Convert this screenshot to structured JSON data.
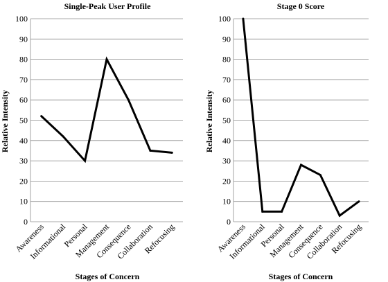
{
  "chart_data": [
    {
      "type": "line",
      "title": "Single-Peak User Profile",
      "xlabel": "Stages of Concern",
      "ylabel": "Relative Intensity",
      "categories": [
        "Awareness",
        "Informational",
        "Personal",
        "Management",
        "Consequence",
        "Collaboration",
        "Refocusing"
      ],
      "series": [
        {
          "values": [
            52,
            42,
            30,
            80,
            60,
            35,
            34
          ]
        }
      ],
      "ylim": [
        0,
        100
      ],
      "yticks": [
        "0",
        "10",
        "20",
        "30",
        "40",
        "50",
        "60",
        "70",
        "80",
        "90",
        "100"
      ],
      "grid": true,
      "legend": "none"
    },
    {
      "type": "line",
      "title": "Stage 0 Score",
      "xlabel": "Stages of Concern",
      "ylabel": "Relative Intensity",
      "categories": [
        "Awareness",
        "Informational",
        "Personal",
        "Management",
        "Consequence",
        "Collaboration",
        "Refocusing"
      ],
      "series": [
        {
          "values": [
            100,
            5,
            5,
            28,
            23,
            3,
            10
          ]
        }
      ],
      "ylim": [
        0,
        100
      ],
      "yticks": [
        "0",
        "10",
        "20",
        "30",
        "40",
        "50",
        "60",
        "70",
        "80",
        "90",
        "100"
      ],
      "grid": true,
      "legend": "none"
    }
  ],
  "colors": {
    "line": "#000000",
    "gridline": "#8c8c8c",
    "background": "#ffffff"
  }
}
